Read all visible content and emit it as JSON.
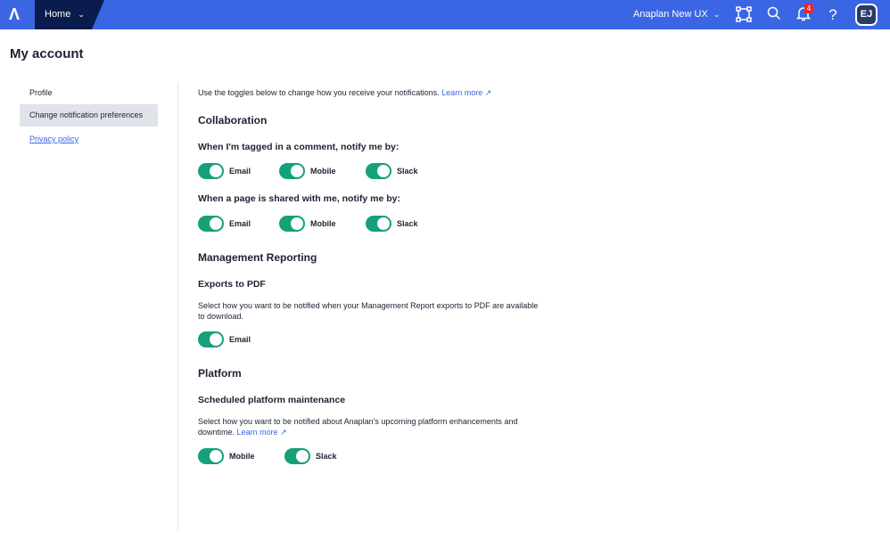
{
  "header": {
    "home": "Home",
    "workspace": "Anaplan New UX",
    "notification_count": "4",
    "avatar_initials": "EJ",
    "brand_color": "#3a66e4"
  },
  "page_title": "My account",
  "sidebar": {
    "items": [
      {
        "label": "Profile"
      },
      {
        "label": "Change notification preferences"
      },
      {
        "label": "Privacy policy"
      }
    ]
  },
  "main": {
    "intro": "Use the toggles below to change how you receive your notifications.",
    "learn_more": "Learn more",
    "collab": {
      "title": "Collaboration",
      "tagged": "When I'm tagged in a comment, notify me by:",
      "shared": "When a page is shared with me, notify me by:"
    },
    "mgmt": {
      "title": "Management Reporting",
      "sub": "Exports to PDF",
      "desc": "Select how you want to be notified when your Management Report exports to PDF are available to download."
    },
    "platform": {
      "title": "Platform",
      "sub": "Scheduled platform maintenance",
      "desc": "Select how you want to be notified about Anaplan's upcoming platform enhancements and downtime."
    },
    "labels": {
      "email": "Email",
      "mobile": "Mobile",
      "slack": "Slack"
    }
  }
}
